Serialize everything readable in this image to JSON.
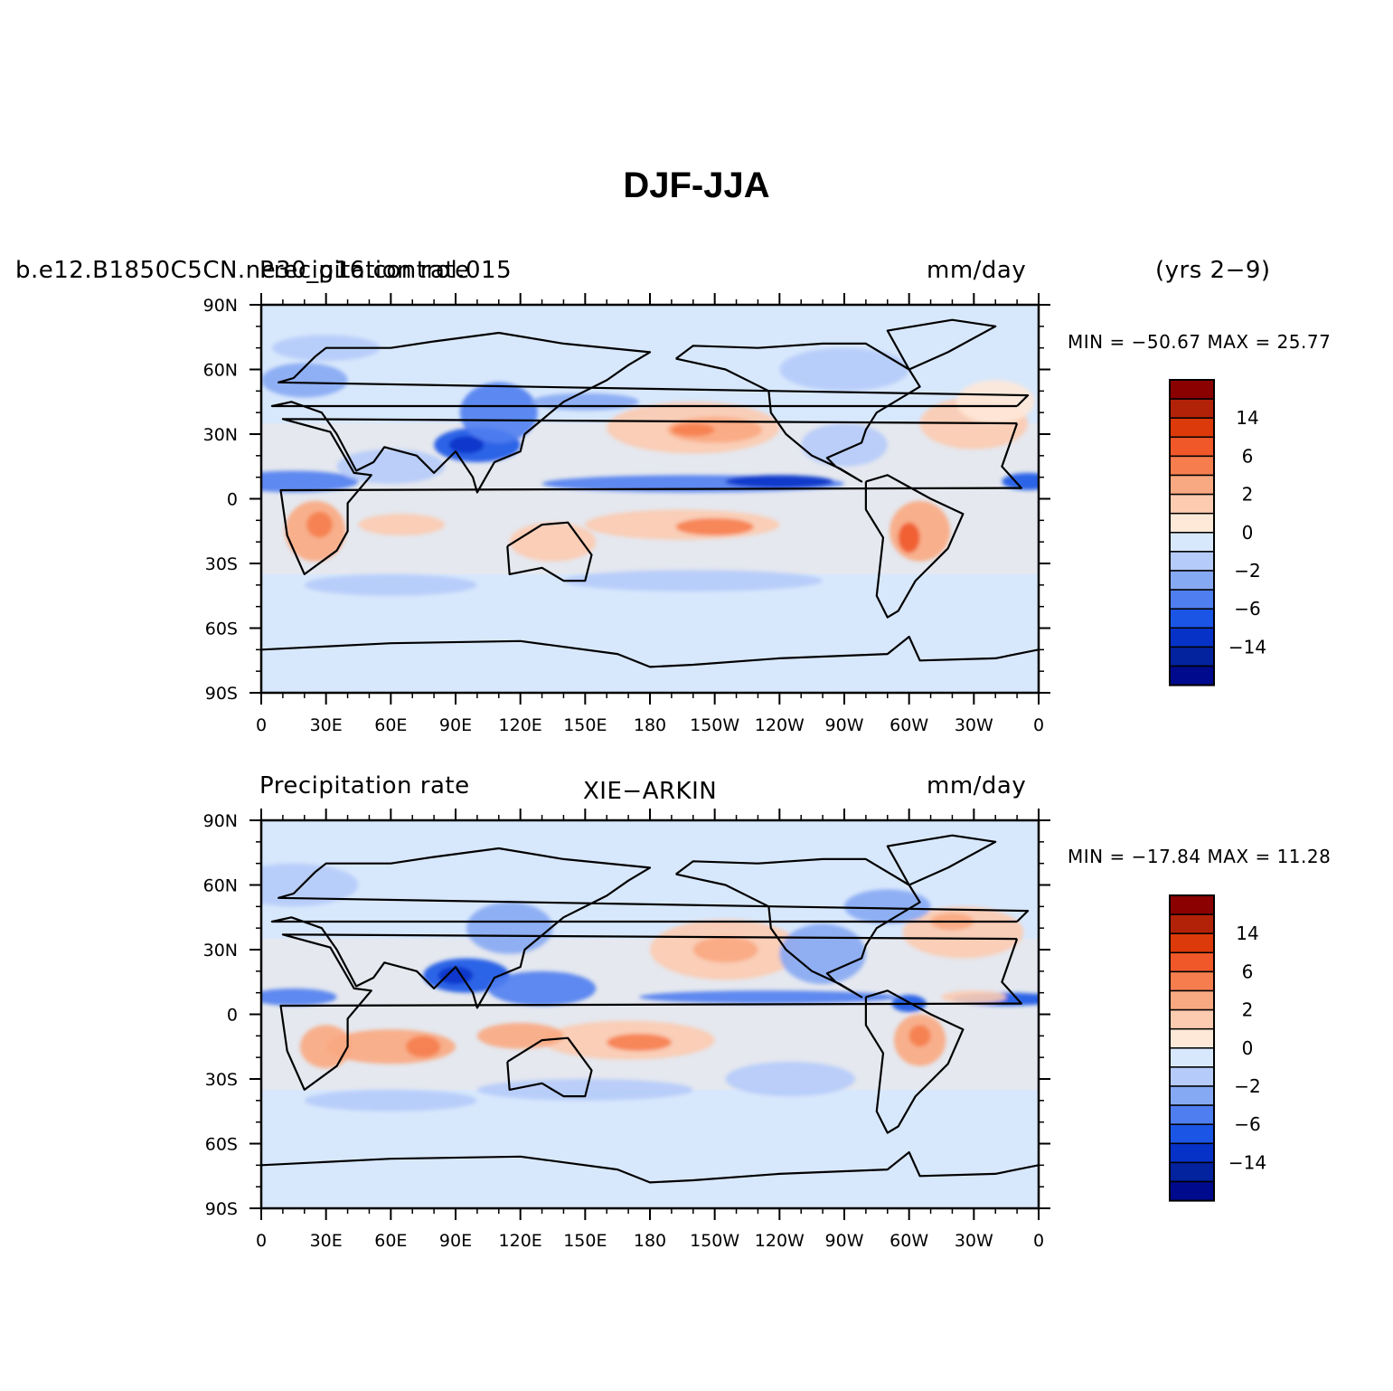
{
  "figure": {
    "title": "DJF-JJA"
  },
  "panels": [
    {
      "left_label": "b.e12.B1850C5CN.ne30_g16.control.015",
      "left_label_overlap": "Precipitation rate",
      "center_label": "",
      "right_label": "mm/day",
      "years_label": "(yrs 2−9)",
      "min_max": "MIN = −50.67  MAX =   25.77"
    },
    {
      "left_label": "Precipitation rate",
      "center_label": "XIE−ARKIN",
      "right_label": "mm/day",
      "years_label": "",
      "min_max": "MIN = −17.84  MAX =   11.28"
    }
  ],
  "axes": {
    "lat_labels": [
      "90N",
      "60N",
      "30N",
      "0",
      "30S",
      "60S",
      "90S"
    ],
    "lon_labels": [
      "0",
      "30E",
      "60E",
      "90E",
      "120E",
      "150E",
      "180",
      "150W",
      "120W",
      "90W",
      "60W",
      "30W",
      "0"
    ]
  },
  "colorbar": {
    "labels": [
      "14",
      "6",
      "2",
      "0",
      "−2",
      "−6",
      "−14"
    ],
    "colors": [
      "#8b0000",
      "#b22208",
      "#dc3a0a",
      "#f0582a",
      "#f67e4e",
      "#f9a981",
      "#fccbb0",
      "#fee8d8",
      "#d8e8fc",
      "#b5cbfa",
      "#86a9f3",
      "#4f7ef0",
      "#1b55e6",
      "#0632c8",
      "#02229e",
      "#000a8c"
    ]
  },
  "map_style": {
    "ocean_base": "#d8e8fc",
    "coastline": "#000000"
  }
}
